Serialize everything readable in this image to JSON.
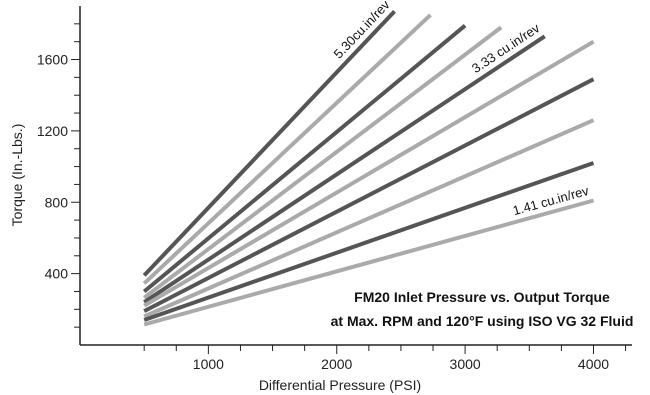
{
  "chart_data": {
    "type": "line",
    "title": "",
    "xlabel": "Differential Pressure (PSI)",
    "ylabel": "Torque (In.-Lbs.)",
    "xlim": [
      0,
      4300
    ],
    "ylim": [
      0,
      1900
    ],
    "x_ticks": [
      1000,
      2000,
      3000,
      4000
    ],
    "y_ticks": [
      400,
      800,
      1200,
      1600
    ],
    "grid": false,
    "annotation_lines": [
      "FM20 Inlet Pressure vs. Output Torque",
      "at Max. RPM and 120°F using ISO VG 32 Fluid"
    ],
    "series": [
      {
        "name": "5.30cu.in/rev",
        "color": "#555555",
        "x": [
          500,
          2450
        ],
        "y": [
          390,
          1870
        ]
      },
      {
        "name": "",
        "color": "#aaaaaa",
        "x": [
          500,
          2730
        ],
        "y": [
          345,
          1850
        ]
      },
      {
        "name": "",
        "color": "#555555",
        "x": [
          500,
          3000
        ],
        "y": [
          300,
          1790
        ]
      },
      {
        "name": "",
        "color": "#aaaaaa",
        "x": [
          500,
          3280
        ],
        "y": [
          265,
          1780
        ]
      },
      {
        "name": "3.33 cu.in/rev",
        "color": "#555555",
        "x": [
          500,
          3620
        ],
        "y": [
          240,
          1730
        ]
      },
      {
        "name": "",
        "color": "#aaaaaa",
        "x": [
          500,
          4000
        ],
        "y": [
          220,
          1700
        ]
      },
      {
        "name": "",
        "color": "#555555",
        "x": [
          500,
          4000
        ],
        "y": [
          190,
          1490
        ]
      },
      {
        "name": "",
        "color": "#aaaaaa",
        "x": [
          500,
          4000
        ],
        "y": [
          160,
          1260
        ]
      },
      {
        "name": "",
        "color": "#555555",
        "x": [
          500,
          4000
        ],
        "y": [
          140,
          1020
        ]
      },
      {
        "name": "1.41 cu.in/rev",
        "color": "#aaaaaa",
        "x": [
          500,
          4000
        ],
        "y": [
          115,
          810
        ]
      }
    ]
  }
}
